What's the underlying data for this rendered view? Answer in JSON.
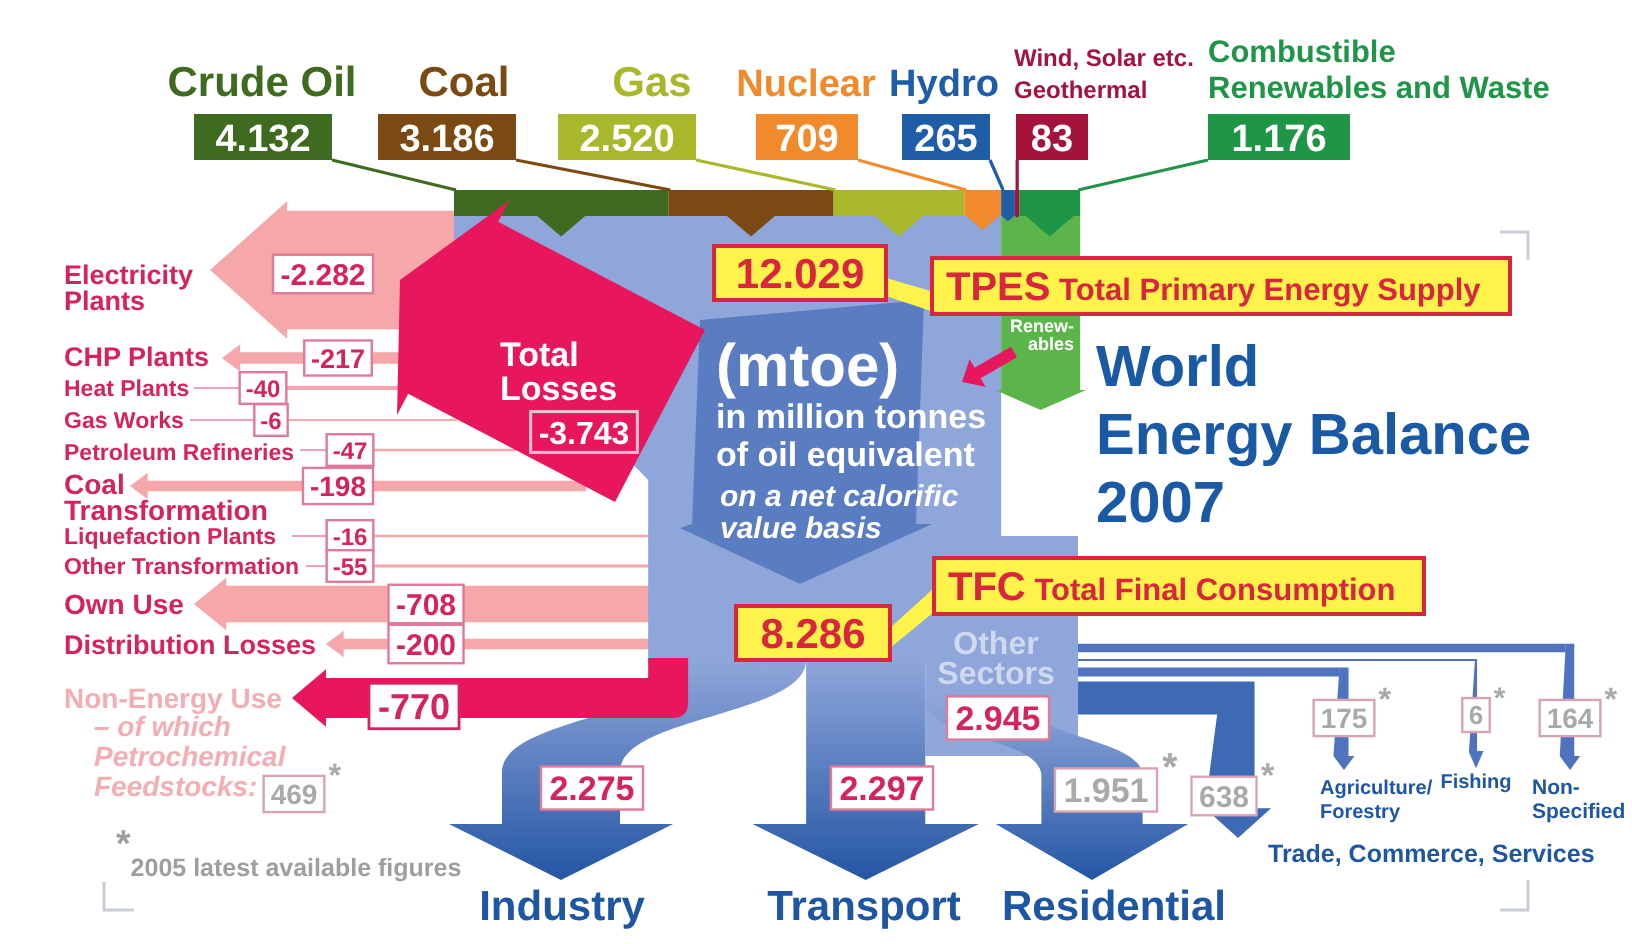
{
  "chart_data": {
    "type": "other",
    "title": "World Energy Balance 2007",
    "categories": [
      "Crude Oil",
      "Coal",
      "Gas",
      "Nuclear",
      "Hydro",
      "Wind, Solar etc. Geothermal",
      "Combustible Renewables and Waste",
      "TPES Total Primary Energy Supply",
      "Total Losses",
      "Electricity Plants",
      "CHP Plants",
      "Heat Plants",
      "Gas Works",
      "Petroleum Refineries",
      "Coal Transformation",
      "Liquefaction Plants",
      "Other Transformation",
      "Own Use",
      "Distribution Losses",
      "TFC Total Final Consumption",
      "Non-Energy Use",
      "Industry",
      "Transport",
      "Other Sectors",
      "Residential",
      "Trade, Commerce, Services",
      "Agriculture/Forestry",
      "Fishing",
      "Non-Specified"
    ],
    "values": [
      4132,
      3186,
      2520,
      709,
      265,
      83,
      1176,
      12029,
      -3743,
      -2282,
      -217,
      -40,
      -6,
      -47,
      -198,
      -16,
      -55,
      -708,
      -200,
      8286,
      -770,
      2275,
      2297,
      2945,
      1951,
      638,
      175,
      6,
      164
    ],
    "value_labels": [
      "4.132",
      "3.186",
      "2.520",
      "709",
      "265",
      "83",
      "1.176",
      "12.029",
      "-3.743",
      "-2.282",
      "-217",
      "-40",
      "-6",
      "-47",
      "-198",
      "-16",
      "-55",
      "-708",
      "-200",
      "8.286",
      "-770",
      "2.275",
      "2.297",
      "2.945",
      "1.951$^{*}$",
      "638$^{*}$",
      "175$^{*}$",
      "6$^{*}$",
      "164$^{*}$"
    ],
    "colors": [
      "#3e6b1f",
      "#7b4912",
      "#a9b82a",
      "#f08a2b",
      "#1e5ea9",
      "#a5133c",
      "#1f9547",
      null,
      null,
      null,
      null,
      null,
      null,
      null,
      null,
      null,
      null,
      null,
      null,
      null,
      null,
      null,
      null,
      null,
      null,
      null,
      null,
      null,
      null
    ],
    "annotations": [
      "(mtoe)",
      "in million tonnes of oil equivalent",
      "on a net calorific value basis",
      "Renew-ables",
      "$^{*}$2005 latest available figures",
      "– of which Petrochemical Feedstocks: 469$^{*}$"
    ]
  }
}
